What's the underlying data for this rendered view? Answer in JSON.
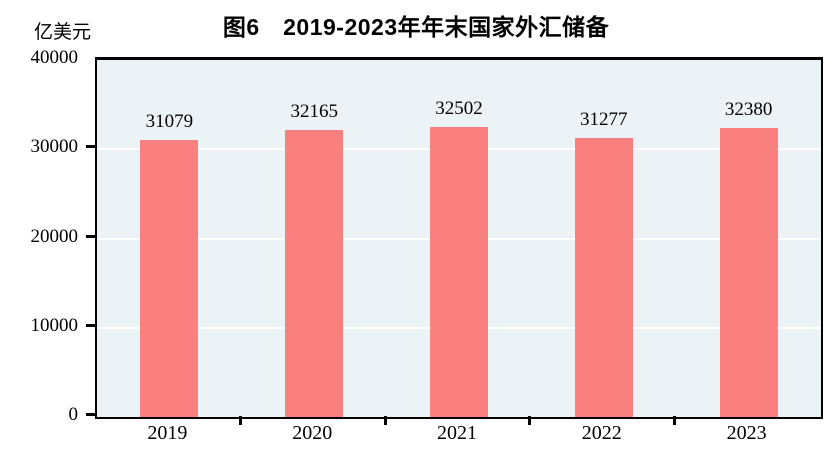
{
  "chart_data": {
    "type": "bar",
    "title": "图6　2019-2023年年末国家外汇储备",
    "unit_label": "亿美元",
    "categories": [
      "2019",
      "2020",
      "2021",
      "2022",
      "2023"
    ],
    "values": [
      31079,
      32165,
      32502,
      31277,
      32380
    ],
    "value_labels": [
      "31079",
      "32165",
      "32502",
      "31277",
      "32380"
    ],
    "ylim": [
      0,
      40000
    ],
    "yticks": [
      0,
      10000,
      20000,
      30000,
      40000
    ],
    "ytick_labels": [
      "0",
      "10000",
      "20000",
      "30000",
      "40000"
    ],
    "grid": "horizontal-on",
    "legend": "none",
    "colors": {
      "bar": "#fa8080",
      "plot_background": "#ecf3f6",
      "gridline": "#ffffff",
      "axis": "#000000",
      "text": "#000000"
    }
  }
}
